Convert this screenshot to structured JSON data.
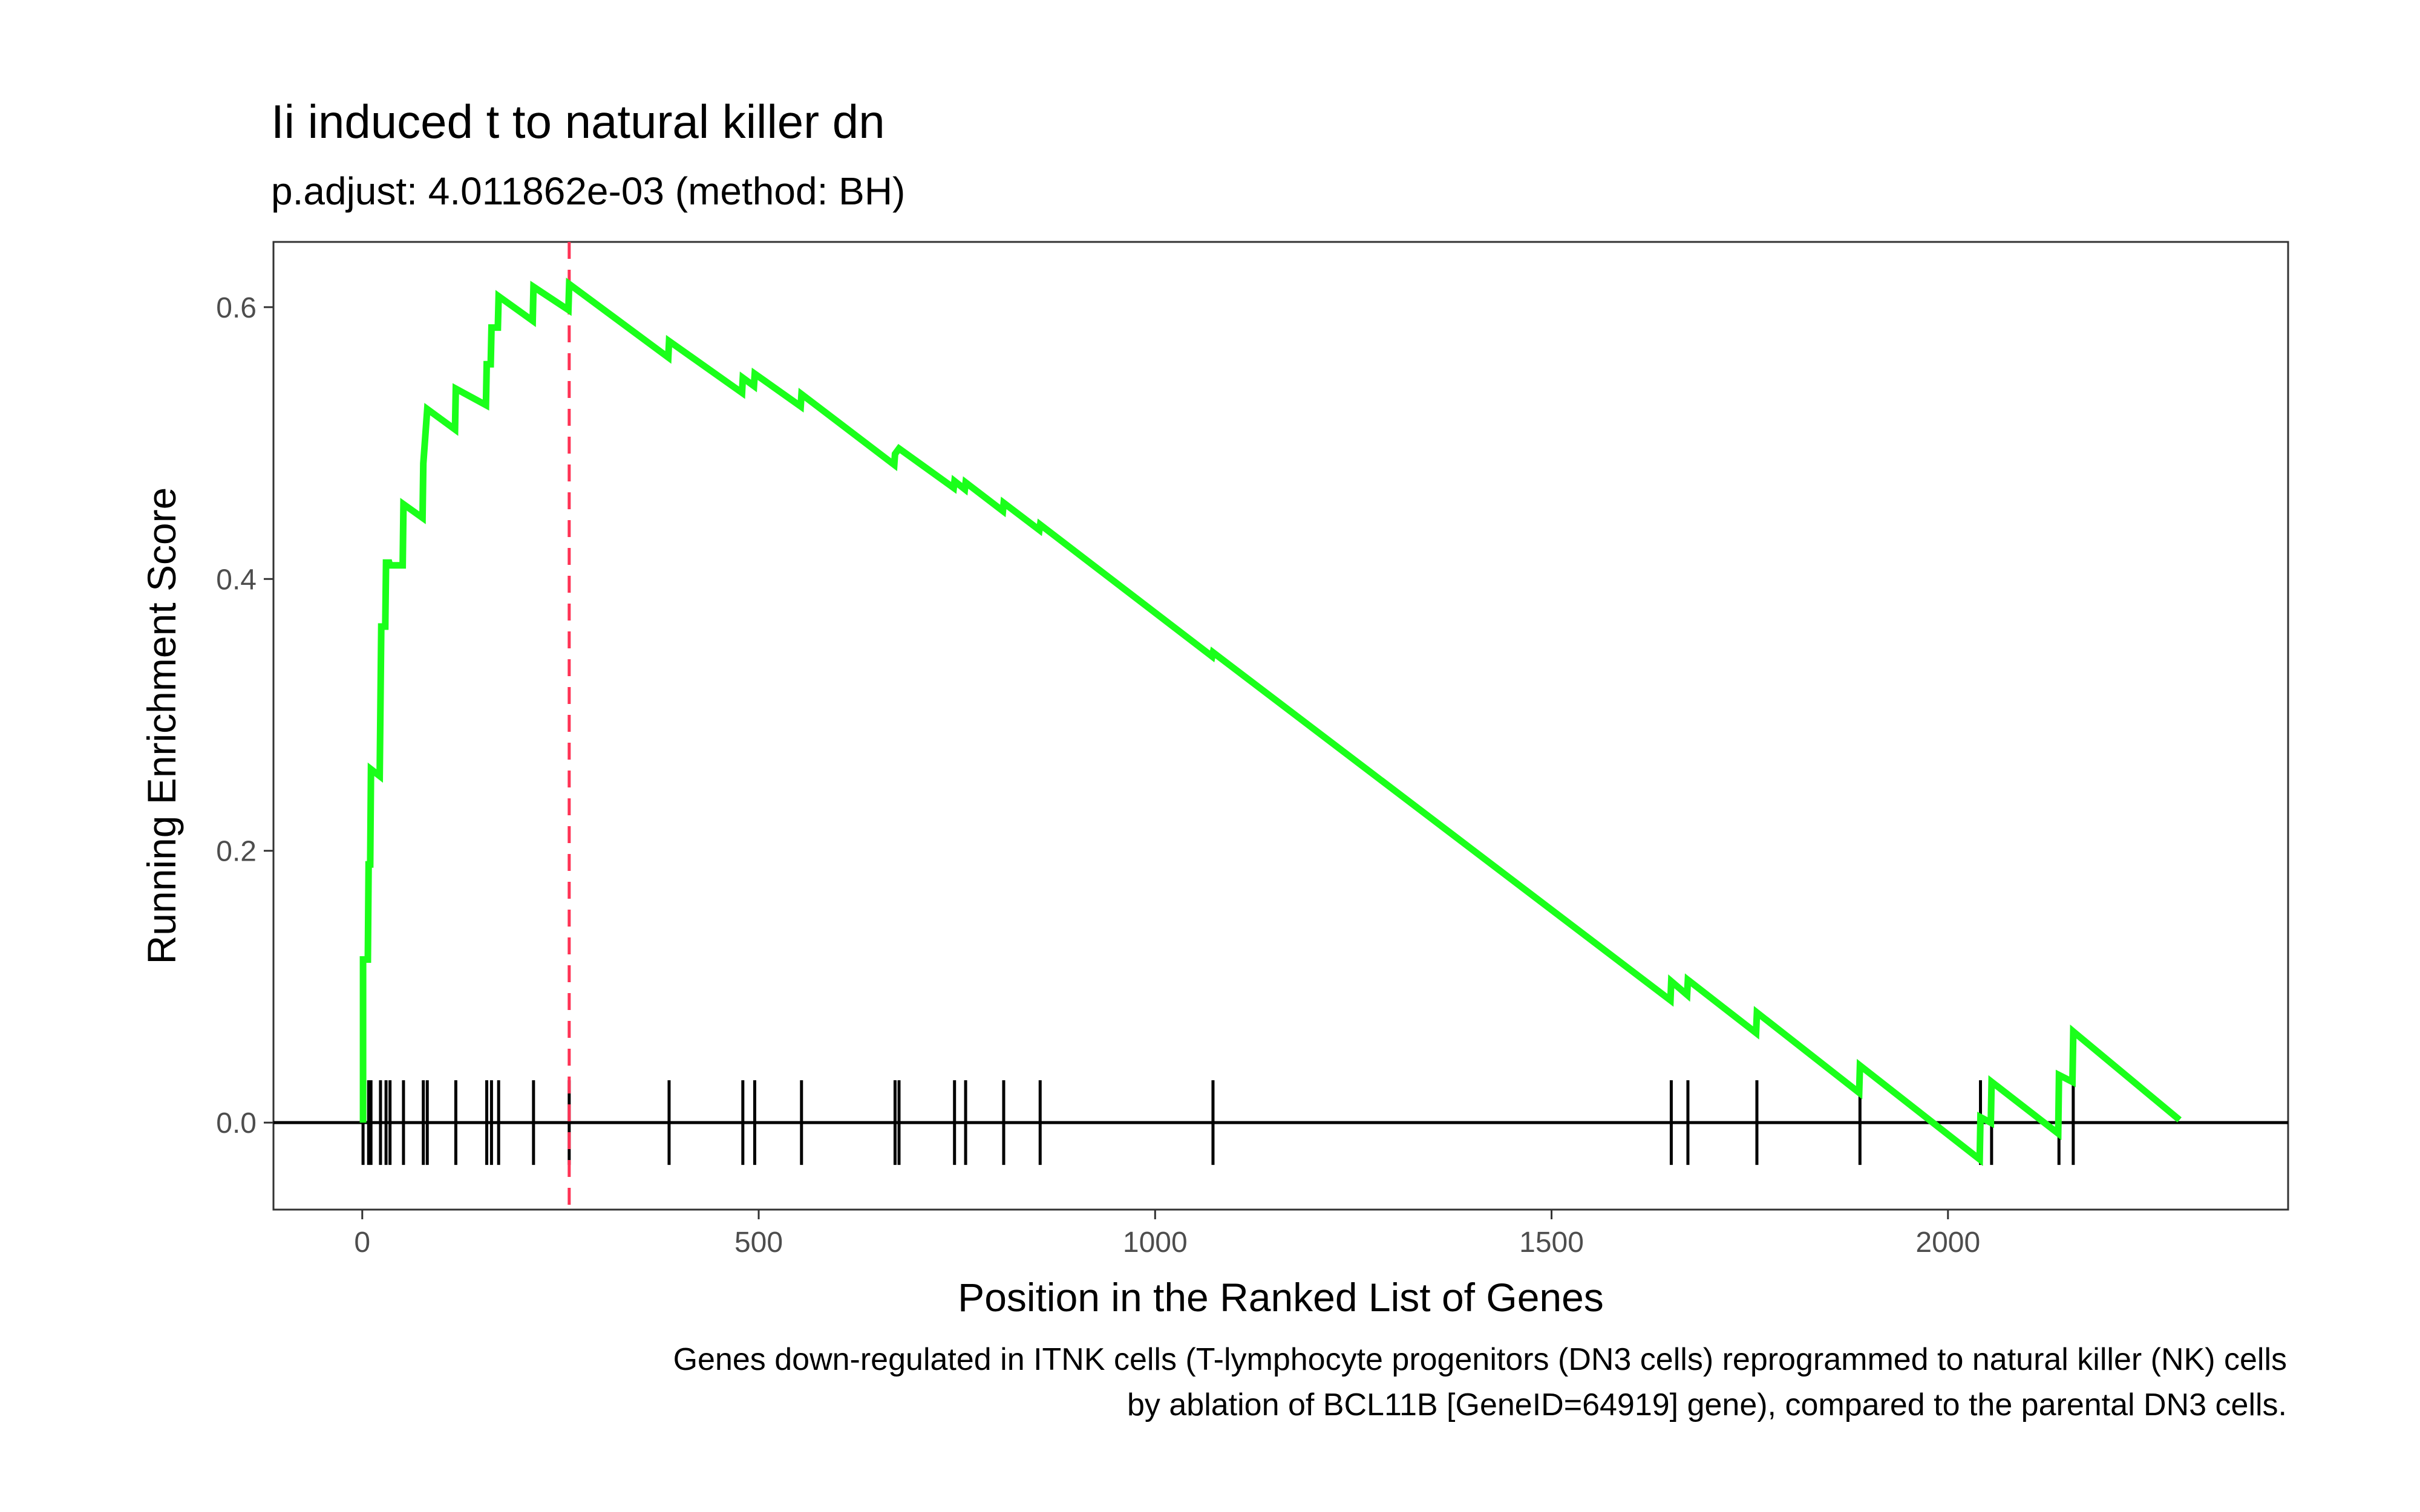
{
  "chart_data": {
    "type": "line",
    "title": "Ii induced t to natural killer dn",
    "subtitle": "p.adjust: 4.011862e-03 (method: BH)",
    "xlabel": "Position in the Ranked List of Genes",
    "ylabel": "Running Enrichment Score",
    "caption": [
      "Genes down-regulated in ITNK cells (T-lymphocyte progenitors (DN3 cells) reprogrammed to natural killer (NK) cells",
      "by ablation of BCL11B [GeneID=64919] gene), compared to the parental DN3 cells."
    ],
    "xlim": [
      -112,
      2429
    ],
    "ylim": [
      -0.064,
      0.648
    ],
    "xticks": [
      0,
      500,
      1000,
      1500,
      2000
    ],
    "xtick_labels": [
      "0",
      "500",
      "1000",
      "1500",
      "2000"
    ],
    "yticks": [
      0.0,
      0.2,
      0.4,
      0.6
    ],
    "ytick_labels": [
      "0.0",
      "0.2",
      "0.4",
      "0.6"
    ],
    "grid": false,
    "colors": {
      "line": "#1aff1a",
      "hits": "#000000",
      "peak": "#ff3355",
      "zero": "#000000"
    },
    "peak_position": 261,
    "hit_positions": [
      1,
      8,
      11,
      23,
      30,
      35,
      52,
      77,
      82,
      118,
      157,
      163,
      172,
      216,
      261,
      387,
      480,
      495,
      554,
      672,
      677,
      747,
      761,
      809,
      855,
      1073,
      1651,
      1672,
      1759,
      1889,
      2041,
      2055,
      2140,
      2158
    ],
    "series": [
      {
        "values": [
          [
            1,
            0.0
          ],
          [
            1,
            0.12
          ],
          [
            7,
            0.12
          ],
          [
            8,
            0.19
          ],
          [
            10,
            0.19
          ],
          [
            11,
            0.26
          ],
          [
            22,
            0.255
          ],
          [
            23,
            0.31
          ],
          [
            24,
            0.365
          ],
          [
            29,
            0.365
          ],
          [
            30,
            0.412
          ],
          [
            34,
            0.412
          ],
          [
            35,
            0.41
          ],
          [
            51,
            0.41
          ],
          [
            52,
            0.455
          ],
          [
            76,
            0.445
          ],
          [
            77,
            0.485
          ],
          [
            82,
            0.525
          ],
          [
            117,
            0.51
          ],
          [
            118,
            0.54
          ],
          [
            156,
            0.528
          ],
          [
            157,
            0.558
          ],
          [
            162,
            0.558
          ],
          [
            163,
            0.585
          ],
          [
            171,
            0.585
          ],
          [
            172,
            0.608
          ],
          [
            215,
            0.59
          ],
          [
            216,
            0.615
          ],
          [
            260,
            0.598
          ],
          [
            261,
            0.617
          ],
          [
            386,
            0.563
          ],
          [
            387,
            0.575
          ],
          [
            479,
            0.537
          ],
          [
            480,
            0.548
          ],
          [
            494,
            0.542
          ],
          [
            495,
            0.551
          ],
          [
            553,
            0.527
          ],
          [
            554,
            0.536
          ],
          [
            671,
            0.484
          ],
          [
            672,
            0.492
          ],
          [
            677,
            0.496
          ],
          [
            746,
            0.467
          ],
          [
            747,
            0.472
          ],
          [
            760,
            0.466
          ],
          [
            761,
            0.471
          ],
          [
            808,
            0.45
          ],
          [
            809,
            0.456
          ],
          [
            854,
            0.436
          ],
          [
            855,
            0.44
          ],
          [
            1072,
            0.343
          ],
          [
            1073,
            0.346
          ],
          [
            1650,
            0.09
          ],
          [
            1651,
            0.104
          ],
          [
            1671,
            0.094
          ],
          [
            1672,
            0.105
          ],
          [
            1758,
            0.066
          ],
          [
            1759,
            0.081
          ],
          [
            1888,
            0.022
          ],
          [
            1889,
            0.042
          ],
          [
            2040,
            -0.027
          ],
          [
            2041,
            0.004
          ],
          [
            2054,
            0.0
          ],
          [
            2055,
            0.03
          ],
          [
            2139,
            -0.008
          ],
          [
            2140,
            0.035
          ],
          [
            2157,
            0.03
          ],
          [
            2158,
            0.067
          ],
          [
            2292,
            0.002
          ]
        ]
      }
    ]
  }
}
